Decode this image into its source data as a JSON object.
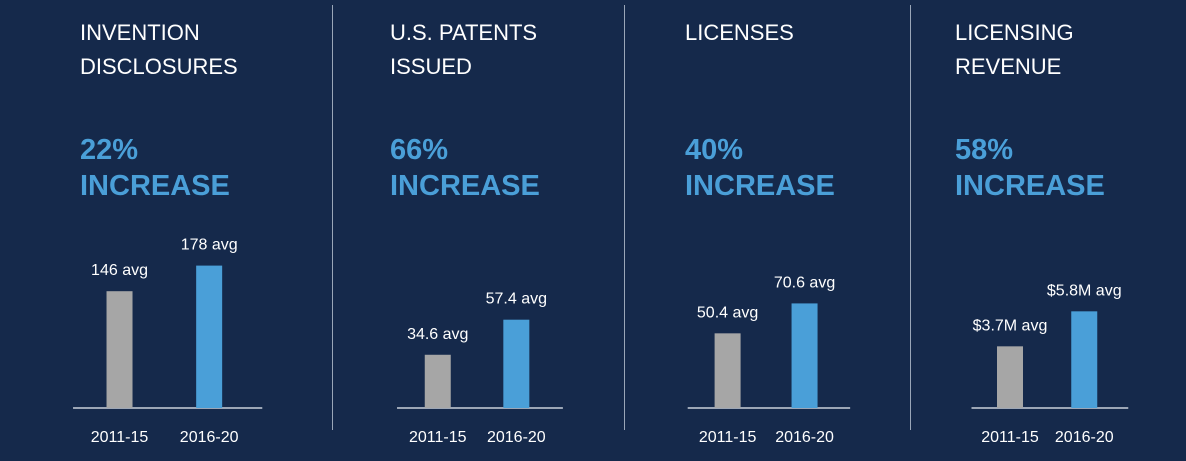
{
  "chart_data": [
    {
      "type": "bar",
      "title": "INVENTION DISCLOSURES",
      "annotation": "22% INCREASE",
      "categories": [
        "2011-15",
        "2016-20"
      ],
      "values": [
        146,
        178
      ],
      "value_labels": [
        "146 avg",
        "178 avg"
      ],
      "colors": [
        "#a6a6a6",
        "#4a9fd8"
      ],
      "ylim": [
        0,
        250
      ]
    },
    {
      "type": "bar",
      "title": "U.S. PATENTS ISSUED",
      "annotation": "66% INCREASE",
      "categories": [
        "2011-15",
        "2016-20"
      ],
      "values": [
        34.6,
        57.4
      ],
      "value_labels": [
        "34.6 avg",
        "57.4 avg"
      ],
      "colors": [
        "#a6a6a6",
        "#4a9fd8"
      ],
      "ylim": [
        0,
        130
      ]
    },
    {
      "type": "bar",
      "title": "LICENSES",
      "annotation": "40% INCREASE",
      "categories": [
        "2011-15",
        "2016-20"
      ],
      "values": [
        50.4,
        70.6
      ],
      "value_labels": [
        "50.4 avg",
        "70.6 avg"
      ],
      "colors": [
        "#a6a6a6",
        "#4a9fd8"
      ],
      "ylim": [
        0,
        135
      ]
    },
    {
      "type": "bar",
      "title": "LICENSING REVENUE",
      "annotation": "58% INCREASE",
      "categories": [
        "2011-15",
        "2016-20"
      ],
      "values": [
        3.7,
        5.8
      ],
      "value_labels": [
        "$3.7M avg",
        "$5.8M avg"
      ],
      "colors": [
        "#a6a6a6",
        "#4a9fd8"
      ],
      "ylim": [
        0,
        12
      ]
    }
  ]
}
